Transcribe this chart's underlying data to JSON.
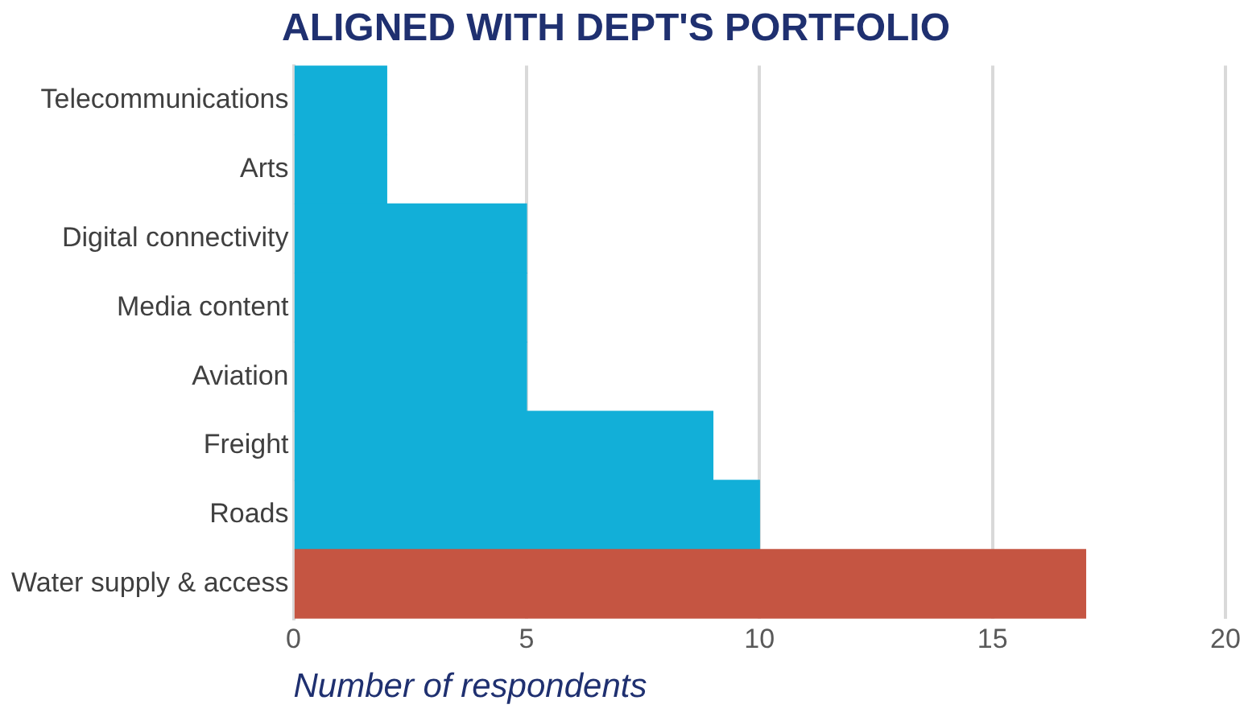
{
  "chart_data": {
    "type": "bar",
    "orientation": "horizontal",
    "title": "ALIGNED WITH DEPT'S PORTFOLIO",
    "xlabel": "Number of respondents",
    "categories": [
      "Telecommunications",
      "Arts",
      "Digital connectivity",
      "Media content",
      "Aviation",
      "Freight",
      "Roads",
      "Water supply & access"
    ],
    "values": [
      2,
      2,
      5,
      5,
      5,
      9,
      10,
      17
    ],
    "colors": [
      "#12afd8",
      "#12afd8",
      "#12afd8",
      "#12afd8",
      "#12afd8",
      "#12afd8",
      "#12afd8",
      "#c55542"
    ],
    "xlim": [
      0,
      20
    ],
    "xticks": [
      0,
      5,
      10,
      15,
      20
    ],
    "grid": "x",
    "legend": false
  }
}
